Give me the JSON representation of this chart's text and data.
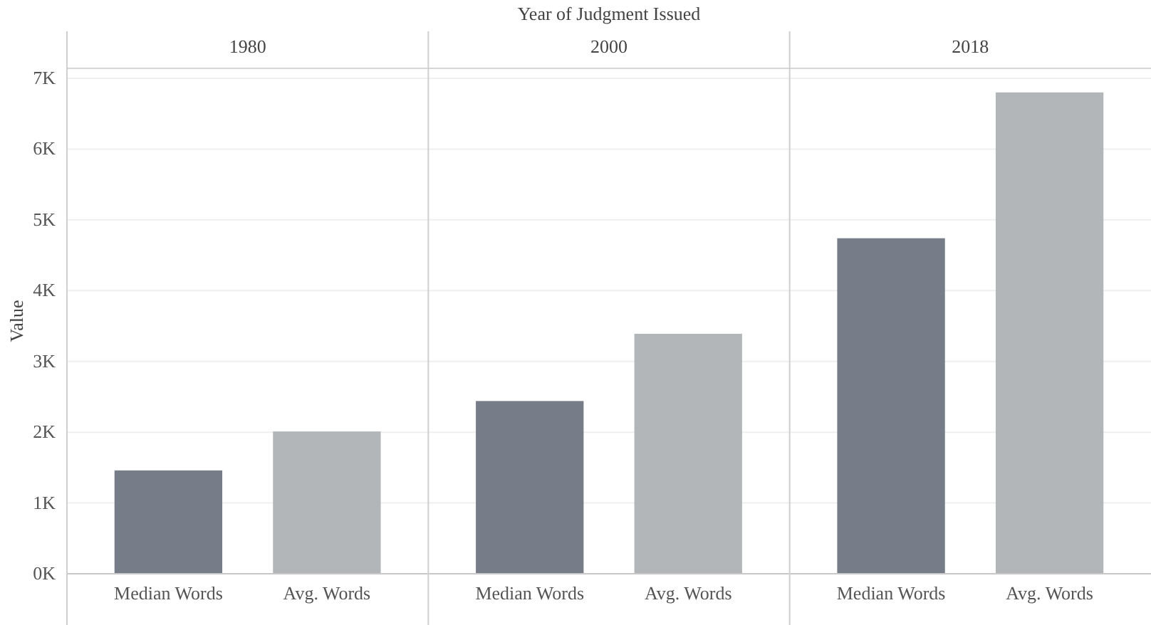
{
  "chart_data": [
    {
      "type": "bar",
      "title": "1980",
      "ylabel": "Value",
      "annotations": [
        "Year of Judgment Issued"
      ],
      "categories": [
        "Median Words",
        "Avg. Words"
      ],
      "values": [
        1460,
        2010
      ],
      "colors": [
        "#767d89",
        "#b3b6b8"
      ],
      "ylim": [
        0,
        7100
      ],
      "yticks": [
        {
          "value": 0,
          "label": "0K"
        },
        {
          "value": 1000,
          "label": "1K"
        },
        {
          "value": 2000,
          "label": "2K"
        },
        {
          "value": 3000,
          "label": "3K"
        },
        {
          "value": 4000,
          "label": "4K"
        },
        {
          "value": 5000,
          "label": "5K"
        },
        {
          "value": 6000,
          "label": "6K"
        },
        {
          "value": 7000,
          "label": "7K"
        }
      ],
      "grid": "y"
    },
    {
      "type": "bar",
      "title": "2000",
      "categories": [
        "Median Words",
        "Avg. Words"
      ],
      "values": [
        2440,
        3390
      ],
      "colors": [
        "#767d89",
        "#b3b6b8"
      ],
      "ylim": [
        0,
        7100
      ],
      "yticks": [
        0,
        1000,
        2000,
        3000,
        4000,
        5000,
        6000,
        7000
      ],
      "grid": "y",
      "tick_labels": "x"
    },
    {
      "type": "bar",
      "title": "2018",
      "categories": [
        "Median Words",
        "Avg. Words"
      ],
      "values": [
        4740,
        6800
      ],
      "colors": [
        "#767d89",
        "#b3b6b8"
      ],
      "ylim": [
        0,
        7100
      ],
      "yticks": [
        0,
        1000,
        2000,
        3000,
        4000,
        5000,
        6000,
        7000
      ],
      "grid": "y",
      "tick_labels": "x"
    }
  ]
}
